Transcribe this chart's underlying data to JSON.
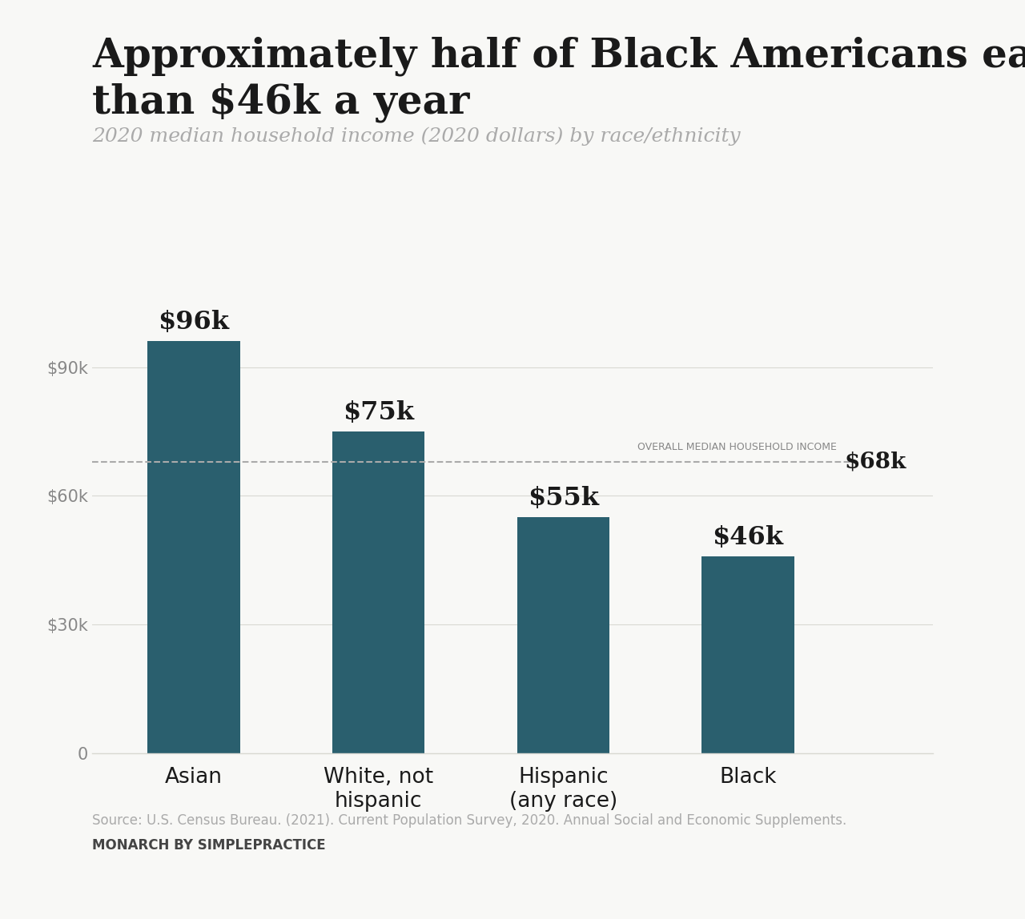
{
  "title_line1": "Approximately half of Black Americans earn less",
  "title_line2": "than $46k a year",
  "subtitle": "2020 median household income (2020 dollars) by race/ethnicity",
  "categories": [
    "Asian",
    "White, not\nhispanic",
    "Hispanic\n(any race)",
    "Black"
  ],
  "values": [
    96000,
    75000,
    55000,
    46000
  ],
  "labels": [
    "$96k",
    "$75k",
    "$55k",
    "$46k"
  ],
  "bar_color": "#2a5f6e",
  "overall_median": 68000,
  "overall_median_label": "$68k",
  "overall_median_text": "OVERALL MEDIAN HOUSEHOLD INCOME",
  "ylim": [
    0,
    107000
  ],
  "yticks": [
    0,
    30000,
    60000,
    90000
  ],
  "ytick_labels": [
    "0",
    "$30k",
    "$60k",
    "$90k"
  ],
  "source_text": "Source: U.S. Census Bureau. (2021). Current Population Survey, 2020. Annual Social and Economic Supplements.",
  "brand_text": "MONARCH BY SIMPLEPRACTICE",
  "bg_color": "#f8f8f6",
  "grid_color": "#d8d8d2",
  "title_color": "#1a1a1a",
  "subtitle_color": "#aaaaaa",
  "bar_label_color": "#1a1a1a",
  "axis_label_color": "#888888",
  "dashed_line_color": "#aaaaaa",
  "overall_label_color": "#888888",
  "source_color": "#aaaaaa",
  "brand_color": "#444444"
}
